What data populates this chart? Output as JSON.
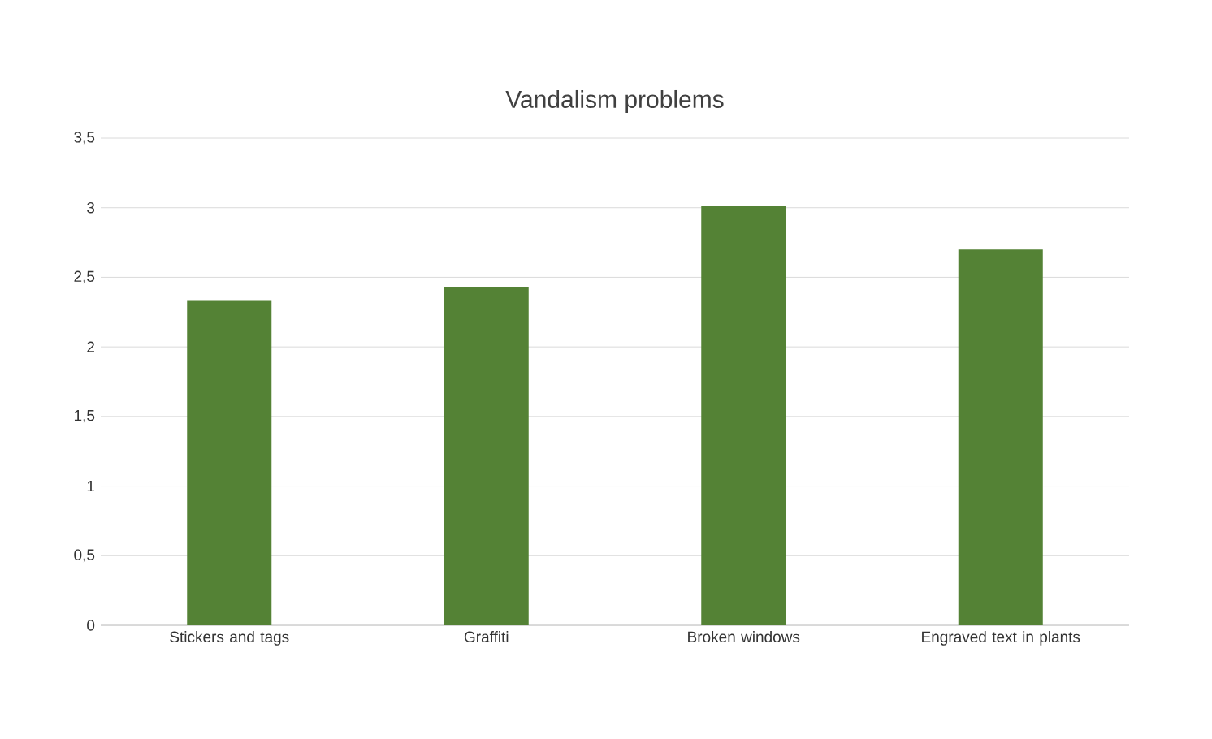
{
  "chart_data": {
    "type": "bar",
    "title": "Vandalism problems",
    "categories": [
      "Stickers and tags",
      "Graffiti",
      "Broken windows",
      "Engraved text in plants"
    ],
    "values": [
      2.33,
      2.43,
      3.01,
      2.7
    ],
    "color": "#548235",
    "ylim": [
      0,
      3.5
    ],
    "yticks": [
      0,
      {
        "value": 0.5,
        "label": "0,5"
      },
      1,
      {
        "value": 1.5,
        "label": "1,5"
      },
      2,
      {
        "value": 2.5,
        "label": "2,5"
      },
      3,
      {
        "value": 3.5,
        "label": "3,5"
      }
    ],
    "grid": "y"
  }
}
